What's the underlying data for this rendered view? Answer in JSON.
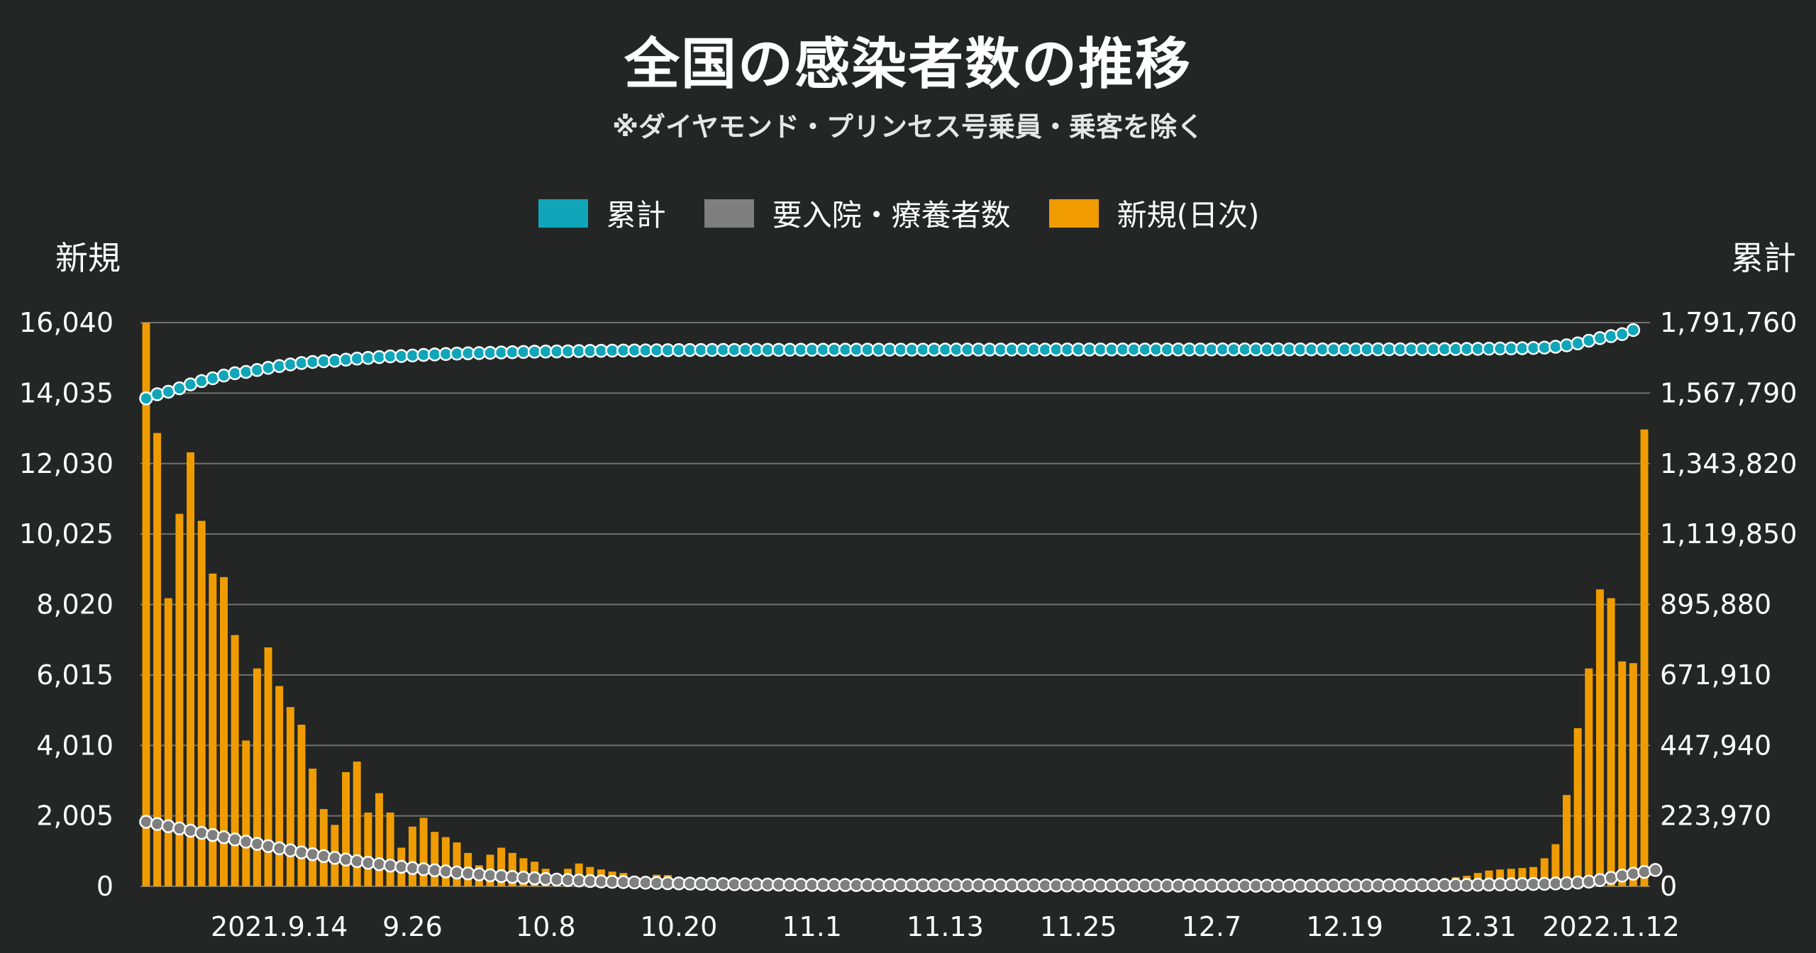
{
  "header": {
    "title": "全国の感染者数の推移",
    "subtitle": "※ダイヤモンド・プリンセス号乗員・乗客を除く"
  },
  "chart_data": {
    "type": "bar",
    "legend": [
      {
        "name": "累計",
        "color": "#10a5b8"
      },
      {
        "name": "要入院・療養者数",
        "color": "#7f7f7f"
      },
      {
        "name": "新規(日次)",
        "color": "#f09c00"
      }
    ],
    "legend_position": "top",
    "ylabel_left": "新規",
    "ylabel_right": "累計",
    "left_ticks": [
      "16,040",
      "14,035",
      "12,030",
      "10,025",
      "8,020",
      "6,015",
      "4,010",
      "2,005",
      "0"
    ],
    "right_ticks": [
      "1,791,760",
      "1,567,790",
      "1,343,820",
      "1,119,850",
      "895,880",
      "671,910",
      "447,940",
      "223,970",
      "0"
    ],
    "ylim_left": [
      0,
      16040
    ],
    "ylim_right": [
      0,
      1791760
    ],
    "x_tick_labels": [
      {
        "label": "2021.9.14",
        "index": 12
      },
      {
        "label": "9.26",
        "index": 24
      },
      {
        "label": "10.8",
        "index": 36
      },
      {
        "label": "10.20",
        "index": 48
      },
      {
        "label": "11.1",
        "index": 60
      },
      {
        "label": "11.13",
        "index": 72
      },
      {
        "label": "11.25",
        "index": 84
      },
      {
        "label": "12.7",
        "index": 96
      },
      {
        "label": "12.19",
        "index": 108
      },
      {
        "label": "12.31",
        "index": 120
      },
      {
        "label": "2022.1.12",
        "index": 132
      }
    ],
    "grid": true,
    "series": [
      {
        "name": "新規(日次)",
        "axis": "left",
        "values": [
          16040,
          12900,
          8200,
          10600,
          12350,
          10400,
          8900,
          8800,
          7150,
          4150,
          6200,
          6800,
          5700,
          5100,
          4600,
          3350,
          2200,
          1750,
          3250,
          3550,
          2100,
          2650,
          2100,
          1100,
          1700,
          1950,
          1550,
          1400,
          1250,
          950,
          600,
          900,
          1100,
          950,
          800,
          700,
          500,
          300,
          500,
          650,
          550,
          480,
          420,
          380,
          260,
          250,
          330,
          320,
          250,
          190,
          160,
          120,
          100,
          90,
          85,
          80,
          70,
          65,
          60,
          55,
          50,
          45,
          45,
          40,
          40,
          40,
          38,
          35,
          35,
          32,
          30,
          30,
          28,
          28,
          26,
          25,
          25,
          24,
          24,
          23,
          22,
          22,
          21,
          20,
          20,
          20,
          19,
          19,
          18,
          18,
          18,
          17,
          17,
          16,
          16,
          16,
          16,
          16,
          15,
          15,
          15,
          16,
          16,
          17,
          18,
          20,
          22,
          25,
          28,
          30,
          35,
          40,
          50,
          60,
          80,
          100,
          150,
          200,
          260,
          300,
          380,
          450,
          480,
          500,
          520,
          550,
          800,
          1200,
          2600,
          4500,
          6200,
          8450,
          8200,
          6400,
          6350,
          13000
        ]
      },
      {
        "name": "累計",
        "axis": "right",
        "values": [
          1551000,
          1564000,
          1572000,
          1583000,
          1595500,
          1606000,
          1614800,
          1623600,
          1630800,
          1635000,
          1641200,
          1648000,
          1653700,
          1658800,
          1663400,
          1666800,
          1669000,
          1670700,
          1674000,
          1677500,
          1679600,
          1682300,
          1684400,
          1685500,
          1687200,
          1689100,
          1690700,
          1692100,
          1693300,
          1694300,
          1694900,
          1695800,
          1696900,
          1697800,
          1698600,
          1699300,
          1699800,
          1700100,
          1700600,
          1701300,
          1701800,
          1702300,
          1702700,
          1703100,
          1703300,
          1703600,
          1703900,
          1704200,
          1704500,
          1704700,
          1704800,
          1704900,
          1705000,
          1705100,
          1705200,
          1705300,
          1705300,
          1705400,
          1705500,
          1705500,
          1705600,
          1705600,
          1705700,
          1705700,
          1705700,
          1705800,
          1705800,
          1705800,
          1705900,
          1705900,
          1705900,
          1706000,
          1706000,
          1706000,
          1706100,
          1706100,
          1706100,
          1706100,
          1706200,
          1706200,
          1706200,
          1706200,
          1706300,
          1706300,
          1706300,
          1706300,
          1706300,
          1706400,
          1706400,
          1706400,
          1706400,
          1706400,
          1706500,
          1706500,
          1706500,
          1706500,
          1706500,
          1706600,
          1706600,
          1706600,
          1706600,
          1706600,
          1706600,
          1706700,
          1706700,
          1706700,
          1706700,
          1706800,
          1706800,
          1706800,
          1706900,
          1706900,
          1707000,
          1707000,
          1707100,
          1707200,
          1707300,
          1707500,
          1707800,
          1708100,
          1708500,
          1708900,
          1709400,
          1709900,
          1710400,
          1711200,
          1712400,
          1715000,
          1719500,
          1725700,
          1734200,
          1742400,
          1748800,
          1755200,
          1768200
        ]
      },
      {
        "name": "要入院・療養者数",
        "axis": "right",
        "values": [
          205000,
          198000,
          191000,
          184000,
          177000,
          170000,
          163000,
          156000,
          149000,
          142000,
          135000,
          128000,
          121000,
          114500,
          108000,
          102000,
          96000,
          90500,
          85000,
          80000,
          75000,
          70500,
          66000,
          62000,
          58000,
          54500,
          51000,
          47500,
          44000,
          41000,
          38000,
          35000,
          32500,
          30000,
          27500,
          25500,
          23500,
          21500,
          20000,
          18500,
          17000,
          15500,
          14500,
          13500,
          12500,
          11500,
          10700,
          10000,
          9300,
          8700,
          8100,
          7600,
          7100,
          6700,
          6300,
          5900,
          5600,
          5300,
          5000,
          4800,
          4600,
          4400,
          4200,
          4100,
          4000,
          3900,
          3800,
          3700,
          3600,
          3550,
          3500,
          3450,
          3400,
          3350,
          3300,
          3250,
          3200,
          3150,
          3100,
          3050,
          3000,
          2950,
          2900,
          2850,
          2800,
          2750,
          2700,
          2650,
          2600,
          2550,
          2500,
          2450,
          2400,
          2350,
          2300,
          2250,
          2200,
          2150,
          2100,
          2050,
          2000,
          2000,
          2000,
          2000,
          2050,
          2100,
          2200,
          2300,
          2400,
          2500,
          2700,
          2900,
          3100,
          3300,
          3500,
          3700,
          3900,
          4100,
          4300,
          4600,
          5000,
          5500,
          6000,
          6500,
          7000,
          7500,
          8000,
          9000,
          10000,
          12000,
          15000,
          20000,
          27000,
          34000,
          40000,
          46000,
          52000
        ]
      }
    ]
  }
}
